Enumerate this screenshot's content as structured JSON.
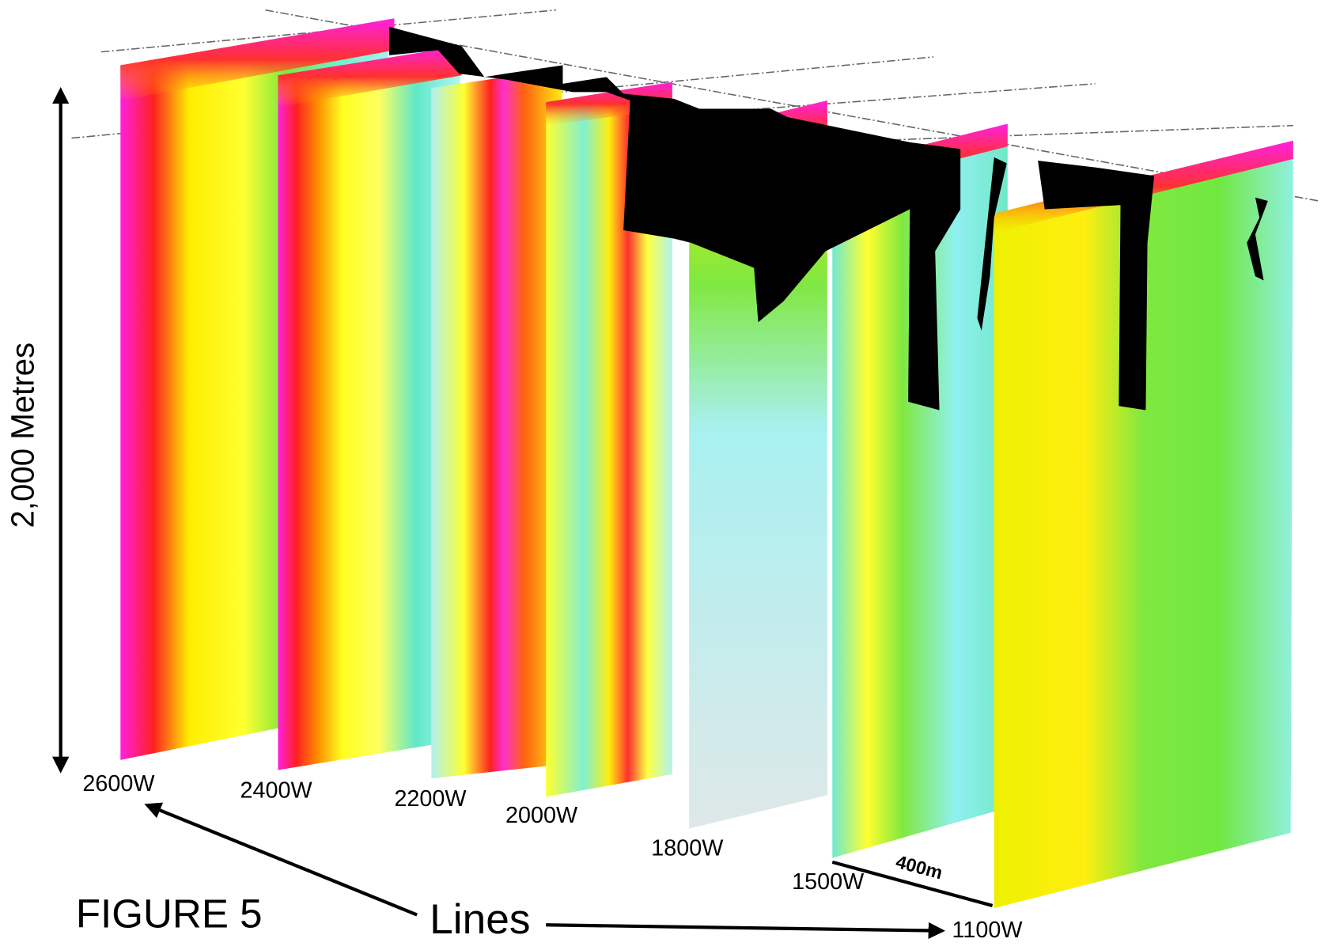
{
  "figure": {
    "title": "FIGURE 5",
    "scale_label": "2,000 Metres",
    "lines_label": "Lines",
    "spacing_label": "400m",
    "sections": [
      {
        "label": "2600W"
      },
      {
        "label": "2400W"
      },
      {
        "label": "2200W"
      },
      {
        "label": "2000W"
      },
      {
        "label": "1800W"
      },
      {
        "label": "1500W"
      },
      {
        "label": "1100W"
      }
    ]
  }
}
